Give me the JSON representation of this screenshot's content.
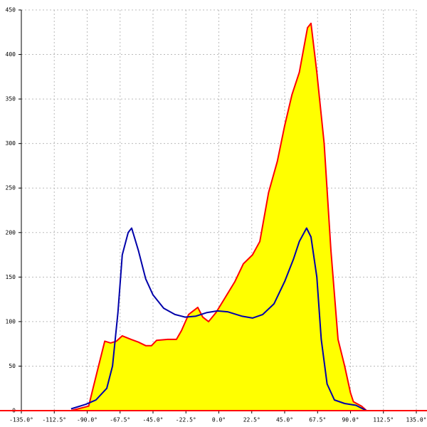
{
  "chart_data": {
    "type": "area",
    "xlim": [
      -135,
      135
    ],
    "ylim": [
      0,
      450
    ],
    "xticks": [
      {
        "value": -135,
        "label": "-135.0°"
      },
      {
        "value": -112.5,
        "label": "-112.5°"
      },
      {
        "value": -90,
        "label": "-90.0°"
      },
      {
        "value": -67.5,
        "label": "-67.5°"
      },
      {
        "value": -45,
        "label": "-45.0°"
      },
      {
        "value": -22.5,
        "label": "-22.5°"
      },
      {
        "value": 0,
        "label": "0.0°"
      },
      {
        "value": 22.5,
        "label": "22.5°"
      },
      {
        "value": 45,
        "label": "45.0°"
      },
      {
        "value": 67.5,
        "label": "67.5°"
      },
      {
        "value": 90,
        "label": "90.0°"
      },
      {
        "value": 112.5,
        "label": "112.5°"
      },
      {
        "value": 135,
        "label": "135.0°"
      }
    ],
    "yticks": [
      0,
      50,
      100,
      150,
      200,
      250,
      300,
      350,
      400,
      450
    ],
    "grid": true,
    "series": [
      {
        "color": "#ff0000",
        "fill": "#ffff00",
        "x": [
          -101,
          -89,
          -86,
          -81.5,
          -78,
          -74,
          -70,
          -66,
          -60,
          -55,
          -50,
          -46,
          -42.5,
          -35,
          -29,
          -25.5,
          -20.7,
          -14.4,
          -11,
          -7,
          -2,
          3.6,
          11,
          16.8,
          23,
          28,
          34,
          40,
          45,
          50,
          55,
          60.6,
          63,
          67,
          72,
          76.6,
          81.5,
          86,
          90,
          92,
          97.6,
          101
        ],
        "values": [
          0,
          5,
          25,
          55,
          78,
          76,
          78,
          84,
          80,
          77,
          73,
          73,
          79,
          80,
          80,
          90,
          108,
          116,
          105,
          100,
          110,
          125,
          145,
          165,
          175,
          190,
          245,
          280,
          320,
          355,
          380,
          430,
          435,
          380,
          300,
          180,
          80,
          50,
          20,
          10,
          5,
          0
        ]
      },
      {
        "color": "#0000aa",
        "x": [
          -101,
          -91,
          -84,
          -76.6,
          -72.7,
          -69,
          -66,
          -62,
          -59.6,
          -55,
          -50,
          -45,
          -37.7,
          -30,
          -23,
          -16,
          -8.5,
          -1,
          6,
          16,
          23,
          30,
          37.7,
          45,
          51,
          55,
          60,
          63,
          67,
          70,
          74,
          79,
          86,
          93.7,
          101
        ],
        "values": [
          2,
          7,
          12,
          25,
          50,
          110,
          175,
          200,
          205,
          180,
          148,
          130,
          115,
          108,
          105,
          106,
          110,
          112,
          111,
          106,
          104,
          108,
          120,
          145,
          170,
          190,
          205,
          195,
          150,
          80,
          30,
          12,
          8,
          6,
          0
        ]
      }
    ]
  }
}
